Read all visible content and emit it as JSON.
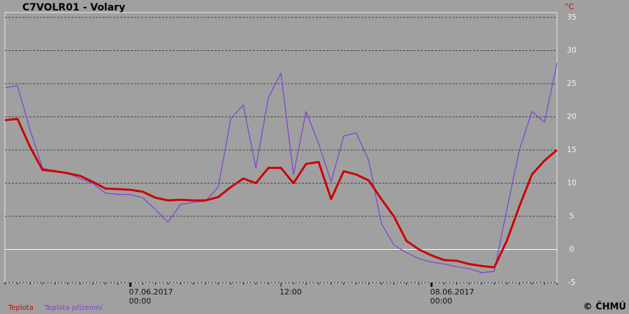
{
  "chart_data": {
    "type": "line",
    "title": "C7VOLR01 - Volary",
    "y_unit": "°C",
    "copyright": "© ČHMÚ",
    "categories": [
      null,
      null,
      null,
      null,
      null,
      null,
      null,
      null,
      null,
      null,
      "07.06.2017\n00:00",
      null,
      null,
      null,
      null,
      null,
      null,
      null,
      null,
      null,
      null,
      null,
      "12:00",
      null,
      null,
      null,
      null,
      null,
      null,
      null,
      null,
      null,
      null,
      null,
      "08.06.2017\n00:00",
      null,
      null,
      null,
      null,
      null,
      null,
      null,
      null,
      null,
      null
    ],
    "series": [
      {
        "name": "Teplota",
        "color": "#cc0000",
        "values": [
          19.5,
          19.7,
          15.5,
          12,
          11.8,
          11.5,
          11.1,
          10.2,
          9.2,
          9.1,
          9.0,
          8.7,
          7.8,
          7.4,
          7.5,
          7.4,
          7.4,
          7.9,
          9.4,
          10.7,
          10.0,
          12.3,
          12.3,
          10.0,
          12.9,
          13.2,
          7.6,
          11.8,
          11.3,
          10.4,
          7.6,
          5.0,
          1.3,
          0,
          -0.9,
          -1.6,
          -1.7,
          -2.2,
          -2.5,
          -2.7,
          1.3,
          6.5,
          11.3,
          13.4,
          15.0
        ]
      },
      {
        "name": "Teplota přízemní",
        "color": "#7b3fd8",
        "values": [
          24.4,
          24.7,
          18.1,
          12.3,
          11.8,
          11.5,
          10.7,
          10.0,
          8.5,
          8.3,
          8.3,
          7.8,
          6.0,
          4.1,
          6.8,
          7.1,
          7.3,
          9.4,
          19.7,
          21.8,
          12.3,
          22.9,
          26.6,
          11.3,
          20.8,
          16.0,
          10.2,
          17.1,
          17.6,
          13.4,
          3.9,
          0.7,
          -0.5,
          -1.4,
          -1.9,
          -2.2,
          -2.6,
          -2.9,
          -3.5,
          -3.3,
          6.0,
          15.0,
          20.8,
          19.2,
          28.1
        ]
      }
    ],
    "ylim": [
      -5,
      35
    ],
    "yticks": [
      -5,
      0,
      5,
      10,
      15,
      20,
      25,
      30,
      35
    ],
    "grid": true,
    "legend": "bottom-left"
  }
}
